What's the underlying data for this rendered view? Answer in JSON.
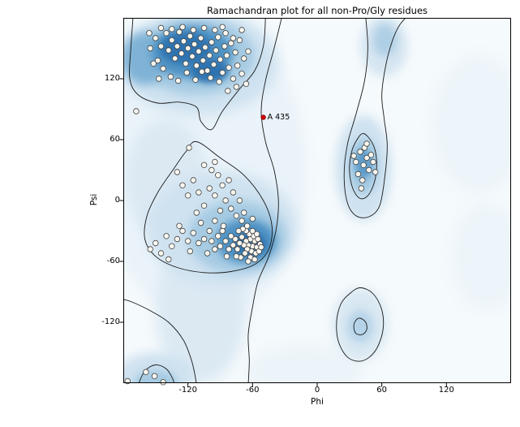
{
  "chart_data": {
    "type": "scatter",
    "title": "Ramachandran plot for all non-Pro/Gly residues",
    "xlabel": "Phi",
    "ylabel": "Psi",
    "xlim": [
      -180,
      180
    ],
    "ylim": [
      -180,
      180
    ],
    "x_ticks": [
      -120,
      -60,
      0,
      60,
      120
    ],
    "y_ticks": [
      -120,
      -60,
      0,
      60,
      120
    ],
    "grid": false,
    "legend": "none",
    "colors": {
      "base": "#f5fafc",
      "contour": "#1a1a1a",
      "point_fill": "#faf7f0",
      "point_stroke": "#444444",
      "highlight": "#d40000",
      "highlight_stroke": "#7a0000",
      "frame": "#000000"
    },
    "highlight": {
      "label": "A 435",
      "phi": -50,
      "psi": 82
    },
    "points": [
      [
        -150,
        160
      ],
      [
        -145,
        152
      ],
      [
        -140,
        165
      ],
      [
        -138,
        148
      ],
      [
        -135,
        158
      ],
      [
        -132,
        140
      ],
      [
        -130,
        152
      ],
      [
        -128,
        166
      ],
      [
        -126,
        145
      ],
      [
        -124,
        157
      ],
      [
        -122,
        135
      ],
      [
        -120,
        150
      ],
      [
        -118,
        162
      ],
      [
        -116,
        142
      ],
      [
        -114,
        154
      ],
      [
        -112,
        133
      ],
      [
        -110,
        147
      ],
      [
        -108,
        160
      ],
      [
        -106,
        138
      ],
      [
        -104,
        151
      ],
      [
        -102,
        128
      ],
      [
        -100,
        143
      ],
      [
        -98,
        156
      ],
      [
        -96,
        134
      ],
      [
        -94,
        148
      ],
      [
        -92,
        161
      ],
      [
        -90,
        139
      ],
      [
        -88,
        126
      ],
      [
        -86,
        152
      ],
      [
        -84,
        143
      ],
      [
        -82,
        131
      ],
      [
        -80,
        155
      ],
      [
        -78,
        120
      ],
      [
        -76,
        146
      ],
      [
        -74,
        133
      ],
      [
        -72,
        158
      ],
      [
        -70,
        125
      ],
      [
        -68,
        140
      ],
      [
        -66,
        115
      ],
      [
        -64,
        147
      ],
      [
        -148,
        138
      ],
      [
        -143,
        130
      ],
      [
        -136,
        122
      ],
      [
        -129,
        118
      ],
      [
        -121,
        126
      ],
      [
        -113,
        119
      ],
      [
        -107,
        127
      ],
      [
        -99,
        121
      ],
      [
        -91,
        117
      ],
      [
        -85,
        165
      ],
      [
        -95,
        168
      ],
      [
        -105,
        170
      ],
      [
        -115,
        168
      ],
      [
        -125,
        171
      ],
      [
        -135,
        169
      ],
      [
        -145,
        170
      ],
      [
        -155,
        150
      ],
      [
        -152,
        135
      ],
      [
        -147,
        120
      ],
      [
        -75,
        112
      ],
      [
        -83,
        108
      ],
      [
        -156,
        165
      ],
      [
        -70,
        168
      ],
      [
        -78,
        160
      ],
      [
        -88,
        171
      ],
      [
        -60,
        -45
      ],
      [
        -58,
        -40
      ],
      [
        -62,
        -38
      ],
      [
        -64,
        -44
      ],
      [
        -56,
        -46
      ],
      [
        -66,
        -40
      ],
      [
        -59,
        -35
      ],
      [
        -61,
        -50
      ],
      [
        -63,
        -33
      ],
      [
        -57,
        -52
      ],
      [
        -65,
        -48
      ],
      [
        -68,
        -44
      ],
      [
        -55,
        -38
      ],
      [
        -60,
        -30
      ],
      [
        -70,
        -36
      ],
      [
        -67,
        -52
      ],
      [
        -53,
        -43
      ],
      [
        -62,
        -56
      ],
      [
        -58,
        -58
      ],
      [
        -66,
        -30
      ],
      [
        -72,
        -42
      ],
      [
        -54,
        -50
      ],
      [
        -69,
        -28
      ],
      [
        -64,
        -60
      ],
      [
        -56,
        -33
      ],
      [
        -74,
        -48
      ],
      [
        -71,
        -56
      ],
      [
        -52,
        -46
      ],
      [
        -76,
        -38
      ],
      [
        -73,
        -30
      ],
      [
        -78,
        -44
      ],
      [
        -75,
        -55
      ],
      [
        -80,
        -35
      ],
      [
        -82,
        -48
      ],
      [
        -85,
        -40
      ],
      [
        -88,
        -30
      ],
      [
        -90,
        -45
      ],
      [
        -84,
        -55
      ],
      [
        -92,
        -35
      ],
      [
        -95,
        -48
      ],
      [
        -87,
        -25
      ],
      [
        -98,
        -40
      ],
      [
        -100,
        -30
      ],
      [
        -105,
        -38
      ],
      [
        -95,
        -20
      ],
      [
        -110,
        -42
      ],
      [
        -102,
        -52
      ],
      [
        -115,
        -32
      ],
      [
        -108,
        -22
      ],
      [
        -120,
        -40
      ],
      [
        -125,
        -30
      ],
      [
        -118,
        -50
      ],
      [
        -130,
        -38
      ],
      [
        -135,
        -45
      ],
      [
        -128,
        -25
      ],
      [
        -140,
        -35
      ],
      [
        -145,
        -52
      ],
      [
        -138,
        -58
      ],
      [
        -150,
        -42
      ],
      [
        -155,
        -48
      ],
      [
        -90,
        -10
      ],
      [
        -85,
        0
      ],
      [
        -95,
        5
      ],
      [
        -80,
        -8
      ],
      [
        -100,
        12
      ],
      [
        -105,
        -5
      ],
      [
        -75,
        -15
      ],
      [
        -110,
        8
      ],
      [
        -88,
        15
      ],
      [
        -92,
        25
      ],
      [
        -98,
        30
      ],
      [
        -82,
        20
      ],
      [
        -78,
        8
      ],
      [
        -115,
        20
      ],
      [
        -120,
        5
      ],
      [
        -70,
        -20
      ],
      [
        -68,
        -12
      ],
      [
        -60,
        -18
      ],
      [
        -125,
        15
      ],
      [
        -130,
        28
      ],
      [
        -105,
        35
      ],
      [
        -95,
        38
      ],
      [
        -72,
        0
      ],
      [
        -65,
        -25
      ],
      [
        -112,
        -12
      ],
      [
        43,
        35
      ],
      [
        46,
        42
      ],
      [
        40,
        48
      ],
      [
        48,
        30
      ],
      [
        36,
        38
      ],
      [
        50,
        45
      ],
      [
        44,
        52
      ],
      [
        38,
        26
      ],
      [
        52,
        38
      ],
      [
        42,
        20
      ],
      [
        34,
        44
      ],
      [
        46,
        56
      ],
      [
        54,
        28
      ],
      [
        41,
        12
      ],
      [
        -168,
        88
      ],
      [
        -119,
        52
      ],
      [
        -151,
        -173
      ],
      [
        -143,
        -179
      ],
      [
        -159,
        -169
      ],
      [
        -176,
        -178
      ]
    ],
    "density_blobs": [
      {
        "phi": -105,
        "psi": 30,
        "rx": 95,
        "ry": 150,
        "color": "#eaf3f9",
        "blur": 8
      },
      {
        "phi": 150,
        "psi": 75,
        "rx": 45,
        "ry": 70,
        "color": "#eef5fa",
        "blur": 8
      },
      {
        "phi": 158,
        "psi": -55,
        "rx": 35,
        "ry": 55,
        "color": "#eef5fa",
        "blur": 8
      },
      {
        "phi": -12,
        "psi": -168,
        "rx": 55,
        "ry": 26,
        "color": "#ecf4f9",
        "blur": 8
      },
      {
        "phi": -110,
        "psi": 136,
        "rx": 74,
        "ry": 52,
        "color": "#cfe2f0",
        "blur": 8
      },
      {
        "phi": -112,
        "psi": 142,
        "rx": 54,
        "ry": 38,
        "color": "#a6cbe3",
        "blur": 6
      },
      {
        "phi": -160,
        "psi": 140,
        "rx": 22,
        "ry": 26,
        "color": "#7fb2d6",
        "blur": 6
      },
      {
        "phi": -116,
        "psi": 146,
        "rx": 38,
        "ry": 26,
        "color": "#4f93c4",
        "blur": 5
      },
      {
        "phi": -122,
        "psi": 150,
        "rx": 24,
        "ry": 16,
        "color": "#2e73b0",
        "blur": 4
      },
      {
        "phi": -100,
        "psi": 128,
        "rx": 18,
        "ry": 12,
        "color": "#2e73b0",
        "blur": 4
      },
      {
        "phi": -140,
        "psi": 20,
        "rx": 38,
        "ry": 60,
        "color": "#dce9f3",
        "blur": 8
      },
      {
        "phi": -108,
        "psi": -108,
        "rx": 42,
        "ry": 72,
        "color": "#dce9f3",
        "blur": 8
      },
      {
        "phi": -88,
        "psi": -28,
        "rx": 70,
        "ry": 56,
        "color": "#cfe2f0",
        "blur": 8
      },
      {
        "phi": -74,
        "psi": -36,
        "rx": 46,
        "ry": 36,
        "color": "#a6cbe3",
        "blur": 6
      },
      {
        "phi": -66,
        "psi": -40,
        "rx": 28,
        "ry": 22,
        "color": "#4f93c4",
        "blur": 5
      },
      {
        "phi": -62,
        "psi": -43,
        "rx": 15,
        "ry": 12,
        "color": "#2e73b0",
        "blur": 4
      },
      {
        "phi": 43,
        "psi": 32,
        "rx": 26,
        "ry": 52,
        "color": "#cfe2f0",
        "blur": 6
      },
      {
        "phi": 43,
        "psi": 34,
        "rx": 14,
        "ry": 28,
        "color": "#a6cbe3",
        "blur": 5
      },
      {
        "phi": 43,
        "psi": 36,
        "rx": 8,
        "ry": 15,
        "color": "#5b9bc9",
        "blur": 4
      },
      {
        "phi": 62,
        "psi": 152,
        "rx": 22,
        "ry": 30,
        "color": "#d5e5f1",
        "blur": 6
      },
      {
        "phi": 63,
        "psi": 158,
        "rx": 11,
        "ry": 16,
        "color": "#aecfe5",
        "blur": 5
      },
      {
        "phi": 40,
        "psi": -122,
        "rx": 26,
        "ry": 36,
        "color": "#d9e8f2",
        "blur": 6
      },
      {
        "phi": 40,
        "psi": -124,
        "rx": 12,
        "ry": 16,
        "color": "#b5d3e8",
        "blur": 5
      },
      {
        "phi": -150,
        "psi": -172,
        "rx": 36,
        "ry": 22,
        "color": "#cfe2f0",
        "blur": 6
      },
      {
        "phi": -150,
        "psi": -179,
        "rx": 20,
        "ry": 12,
        "color": "#a6cbe3",
        "blur": 5
      }
    ],
    "contours": [
      {
        "closed": false,
        "pts": [
          [
            -48,
            180
          ],
          [
            -50,
            152
          ],
          [
            -58,
            128
          ],
          [
            -72,
            110
          ],
          [
            -88,
            88
          ],
          [
            -98,
            70
          ],
          [
            -108,
            78
          ],
          [
            -112,
            92
          ],
          [
            -128,
            97
          ],
          [
            -148,
            96
          ],
          [
            -166,
            104
          ],
          [
            -174,
            120
          ],
          [
            -173,
            150
          ],
          [
            -171,
            180
          ]
        ]
      },
      {
        "closed": true,
        "pts": [
          [
            -112,
            58
          ],
          [
            -90,
            42
          ],
          [
            -68,
            25
          ],
          [
            -50,
            0
          ],
          [
            -42,
            -25
          ],
          [
            -45,
            -48
          ],
          [
            -58,
            -63
          ],
          [
            -80,
            -70
          ],
          [
            -105,
            -71
          ],
          [
            -130,
            -66
          ],
          [
            -150,
            -55
          ],
          [
            -160,
            -38
          ],
          [
            -158,
            -15
          ],
          [
            -148,
            8
          ],
          [
            -134,
            30
          ],
          [
            -122,
            48
          ]
        ]
      },
      {
        "closed": false,
        "pts": [
          [
            -33,
            180
          ],
          [
            -40,
            150
          ],
          [
            -48,
            118
          ],
          [
            -52,
            88
          ],
          [
            -48,
            58
          ],
          [
            -40,
            30
          ],
          [
            -36,
            0
          ],
          [
            -38,
            -28
          ],
          [
            -45,
            -55
          ],
          [
            -55,
            -80
          ],
          [
            -60,
            -105
          ],
          [
            -64,
            -132
          ],
          [
            -63,
            -158
          ],
          [
            -64,
            -181
          ]
        ]
      },
      {
        "closed": false,
        "pts": [
          [
            -112,
            -181
          ],
          [
            -116,
            -160
          ],
          [
            -124,
            -138
          ],
          [
            -138,
            -120
          ],
          [
            -156,
            -108
          ],
          [
            -172,
            -100
          ],
          [
            -181,
            -97
          ]
        ]
      },
      {
        "closed": false,
        "pts": [
          [
            -166,
            -181
          ],
          [
            -160,
            -168
          ],
          [
            -150,
            -162
          ],
          [
            -140,
            -166
          ],
          [
            -134,
            -176
          ],
          [
            -133,
            -181
          ]
        ]
      },
      {
        "closed": false,
        "pts": [
          [
            45,
            181
          ],
          [
            47,
            150
          ],
          [
            44,
            118
          ],
          [
            36,
            85
          ],
          [
            28,
            55
          ],
          [
            25,
            25
          ],
          [
            28,
            -2
          ],
          [
            36,
            -15
          ],
          [
            48,
            -16
          ],
          [
            58,
            -5
          ],
          [
            63,
            25
          ],
          [
            65,
            55
          ],
          [
            62,
            82
          ],
          [
            60,
            105
          ],
          [
            64,
            135
          ],
          [
            70,
            158
          ],
          [
            76,
            172
          ],
          [
            83,
            181
          ]
        ]
      },
      {
        "closed": true,
        "pts": [
          [
            43,
            66
          ],
          [
            51,
            57
          ],
          [
            55,
            42
          ],
          [
            54,
            22
          ],
          [
            48,
            6
          ],
          [
            40,
            2
          ],
          [
            33,
            12
          ],
          [
            30,
            30
          ],
          [
            32,
            48
          ],
          [
            37,
            60
          ]
        ]
      },
      {
        "closed": true,
        "pts": [
          [
            40,
            -86
          ],
          [
            52,
            -92
          ],
          [
            60,
            -108
          ],
          [
            61,
            -128
          ],
          [
            54,
            -148
          ],
          [
            42,
            -158
          ],
          [
            29,
            -155
          ],
          [
            20,
            -140
          ],
          [
            18,
            -120
          ],
          [
            22,
            -102
          ],
          [
            30,
            -92
          ]
        ]
      },
      {
        "closed": true,
        "pts": [
          [
            40,
            -116
          ],
          [
            45,
            -120
          ],
          [
            46,
            -127
          ],
          [
            42,
            -132
          ],
          [
            36,
            -131
          ],
          [
            34,
            -124
          ],
          [
            36,
            -118
          ]
        ]
      }
    ]
  }
}
